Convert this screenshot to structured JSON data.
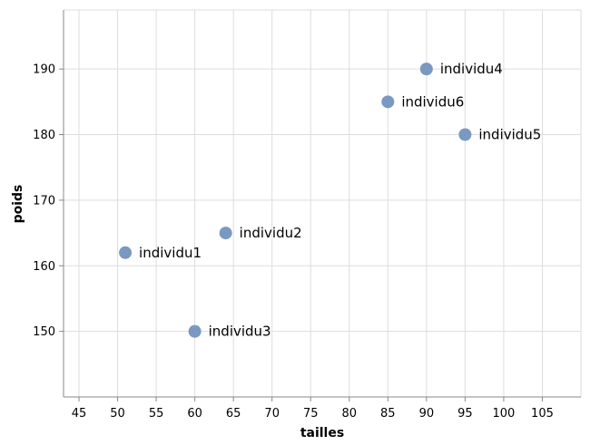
{
  "chart_data": {
    "type": "scatter",
    "xlabel": "tailles",
    "ylabel": "poids",
    "xlim": [
      43,
      110
    ],
    "ylim": [
      140,
      199
    ],
    "xticks": [
      45,
      50,
      55,
      60,
      65,
      70,
      75,
      80,
      85,
      90,
      95,
      100,
      105
    ],
    "yticks": [
      150,
      160,
      170,
      180,
      190
    ],
    "grid": true,
    "marker_color": "#7a99c0",
    "points": [
      {
        "label": "individu1",
        "x": 51,
        "y": 162
      },
      {
        "label": "individu2",
        "x": 64,
        "y": 165
      },
      {
        "label": "individu3",
        "x": 60,
        "y": 150
      },
      {
        "label": "individu4",
        "x": 90,
        "y": 190
      },
      {
        "label": "individu5",
        "x": 95,
        "y": 180
      },
      {
        "label": "individu6",
        "x": 85,
        "y": 185
      }
    ]
  }
}
